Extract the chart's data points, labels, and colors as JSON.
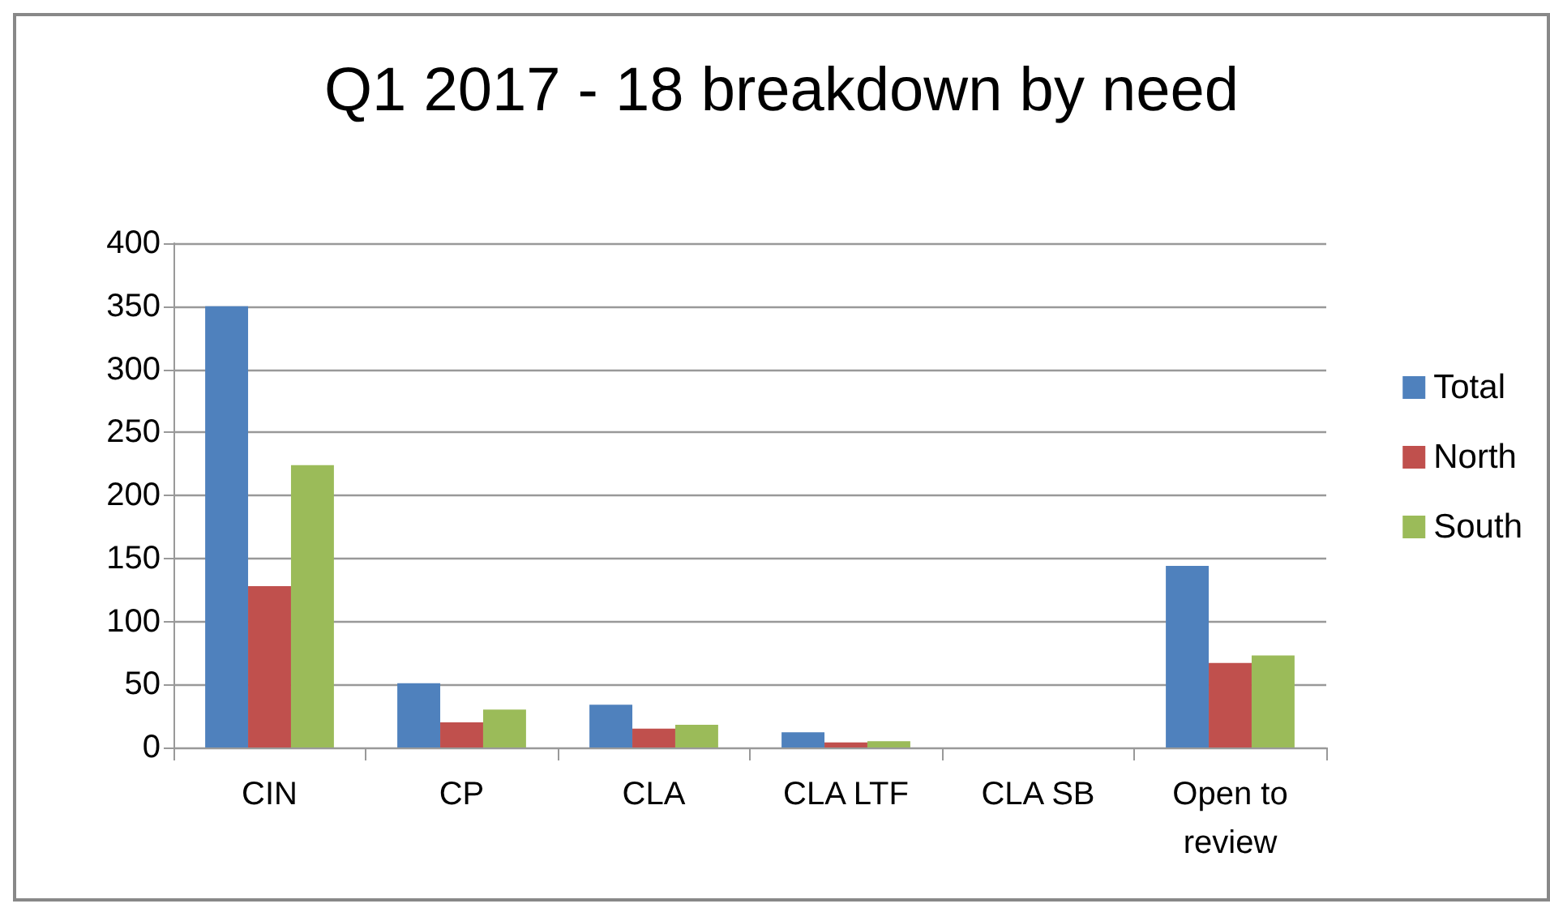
{
  "chart_data": {
    "type": "bar",
    "title": "Q1 2017 - 18 breakdown by need",
    "categories": [
      "CIN",
      "CP",
      "CLA",
      "CLA LTF",
      "CLA SB",
      "Open to\nreview"
    ],
    "series": [
      {
        "name": "Total",
        "color": "#4f81bd",
        "values": [
          350,
          51,
          34,
          12,
          0,
          144
        ]
      },
      {
        "name": "North",
        "color": "#c0504d",
        "values": [
          128,
          20,
          15,
          4,
          0,
          67
        ]
      },
      {
        "name": "South",
        "color": "#9bbb59",
        "values": [
          224,
          30,
          18,
          5,
          0,
          73
        ]
      }
    ],
    "ylim": [
      0,
      400
    ],
    "yticks": [
      0,
      50,
      100,
      150,
      200,
      250,
      300,
      350,
      400
    ],
    "grid": "y",
    "legend": "right"
  }
}
